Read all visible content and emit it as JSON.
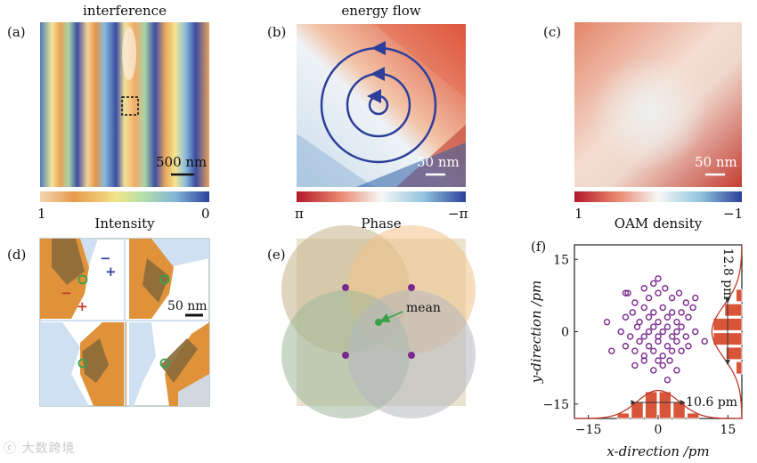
{
  "panels": {
    "a": {
      "label": "(a)",
      "title": "interference",
      "scale": "500 nm",
      "cbar_min": "1",
      "cbar_max": "0"
    },
    "b": {
      "label": "(b)",
      "title": "energy flow",
      "scale": "50 nm",
      "cbar_min": "π",
      "cbar_max": "−π",
      "cbar_title": "Phase"
    },
    "c": {
      "label": "(c)",
      "scale": "50 nm",
      "cbar_min": "1",
      "cbar_max": "−1",
      "cbar_title": "OAM density"
    },
    "d": {
      "label": "(d)",
      "title": "Intensity",
      "scale": "50 nm",
      "signs": [
        "−",
        "+",
        "−",
        "+"
      ]
    },
    "e": {
      "label": "(e)",
      "annotation": "mean"
    },
    "f": {
      "label": "(f)"
    }
  },
  "colors": {
    "blue": "#2d3f9a",
    "red": "#c0392b",
    "orange": "#e0923a",
    "purple": "#7a2a8e",
    "green": "#3aa04a",
    "bar": "#d9553a"
  },
  "chart_data": {
    "type": "scatter",
    "panel": "f",
    "xlabel": "x-direction /pm",
    "ylabel": "y-direction /pm",
    "xlim": [
      -18,
      18
    ],
    "ylim": [
      -18,
      18
    ],
    "xticks": [
      "−15",
      "0",
      "15"
    ],
    "yticks": [
      "15",
      "0",
      "−15"
    ],
    "x_width_label": "10.6 pm",
    "y_width_label": "12.8 pm",
    "x_hist": {
      "centers": [
        -7.5,
        -4.5,
        -1.5,
        1.5,
        4.5,
        7.5
      ],
      "counts": [
        0.2,
        0.6,
        1.0,
        1.0,
        0.6,
        0.2
      ]
    },
    "y_hist": {
      "centers": [
        -7.5,
        -4.5,
        -1.5,
        1.5,
        4.5,
        7.5
      ],
      "counts": [
        0.2,
        0.55,
        1.0,
        1.0,
        0.6,
        0.2
      ]
    },
    "points": [
      [
        -6.5,
        8
      ],
      [
        -5,
        6
      ],
      [
        -3,
        9
      ],
      [
        -2,
        7
      ],
      [
        -1,
        10
      ],
      [
        0,
        8
      ],
      [
        1.5,
        9
      ],
      [
        3,
        7
      ],
      [
        4.5,
        8
      ],
      [
        6,
        6
      ],
      [
        -7,
        3
      ],
      [
        -5.5,
        4
      ],
      [
        -4,
        2
      ],
      [
        -3,
        5
      ],
      [
        -2,
        3
      ],
      [
        -1,
        4
      ],
      [
        0,
        2
      ],
      [
        1,
        5
      ],
      [
        2,
        3
      ],
      [
        3,
        4
      ],
      [
        4,
        2
      ],
      [
        5,
        4
      ],
      [
        6.5,
        3
      ],
      [
        7.5,
        5
      ],
      [
        -8,
        0
      ],
      [
        -6,
        -1
      ],
      [
        -4.5,
        1
      ],
      [
        -3,
        -1
      ],
      [
        -2,
        0
      ],
      [
        -1,
        1
      ],
      [
        0,
        -1
      ],
      [
        1,
        0
      ],
      [
        2,
        1
      ],
      [
        3,
        -1
      ],
      [
        4,
        0
      ],
      [
        5,
        1
      ],
      [
        6,
        -1
      ],
      [
        8,
        0
      ],
      [
        -7,
        -3
      ],
      [
        -5,
        -4
      ],
      [
        -4,
        -2
      ],
      [
        -3,
        -5
      ],
      [
        -2,
        -3
      ],
      [
        -1,
        -4
      ],
      [
        0,
        -2
      ],
      [
        1,
        -5
      ],
      [
        2,
        -3
      ],
      [
        3,
        -4
      ],
      [
        4,
        -2
      ],
      [
        5,
        -4
      ],
      [
        6.5,
        -3
      ],
      [
        -5,
        -7
      ],
      [
        -3,
        -6
      ],
      [
        -1,
        -8
      ],
      [
        0,
        -6
      ],
      [
        1,
        -7
      ],
      [
        2.5,
        -6
      ],
      [
        4,
        -8
      ],
      [
        -11,
        2
      ],
      [
        -10,
        -4
      ],
      [
        10,
        -2
      ],
      [
        8,
        7
      ],
      [
        -7,
        8
      ],
      [
        0,
        11
      ],
      [
        2,
        -10
      ]
    ]
  }
}
